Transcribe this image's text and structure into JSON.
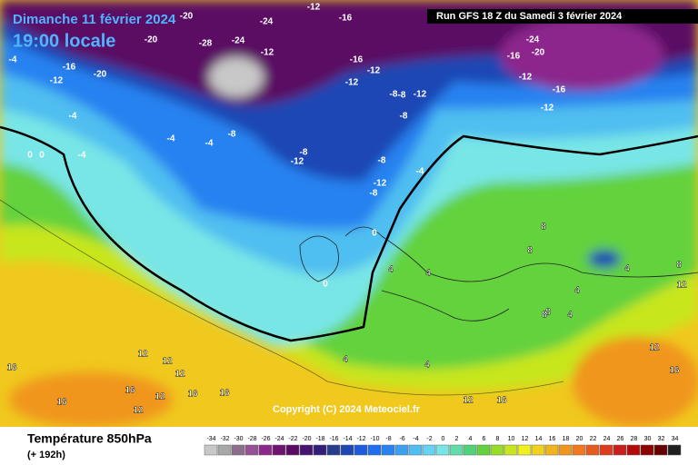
{
  "header": {
    "date": "Dimanche 11 février 2024",
    "time": "19:00 locale",
    "run": "Run GFS 18 Z du Samedi 3 février 2024"
  },
  "footer": {
    "parameter": "Température 850hPa",
    "lead": "(+ 192h)",
    "copyright": "Copyright (C) 2024 Meteociel.fr"
  },
  "legend": {
    "ticks": [
      -34,
      -32,
      -30,
      -28,
      -26,
      -24,
      -22,
      -20,
      -18,
      -16,
      -14,
      -12,
      -10,
      -8,
      -6,
      -4,
      -2,
      0,
      2,
      4,
      6,
      8,
      10,
      12,
      14,
      16,
      18,
      20,
      22,
      24,
      26,
      28,
      30,
      32,
      34
    ],
    "colors": [
      "#c8c8c8",
      "#a8a8a8",
      "#8c6e8c",
      "#965096",
      "#8c288c",
      "#6e146e",
      "#5a0a64",
      "#46146e",
      "#321e78",
      "#283c8c",
      "#1e46b4",
      "#1e5adc",
      "#1e6ef0",
      "#2882f0",
      "#3ca0f0",
      "#50bef0",
      "#64d2f0",
      "#78e6e6",
      "#64dcaa",
      "#50d278",
      "#64d23c",
      "#96dc28",
      "#c8e61e",
      "#f0f01e",
      "#f0d21e",
      "#f0b41e",
      "#f0961e",
      "#f0781e",
      "#e65a1e",
      "#dc3c1e",
      "#c81e1e",
      "#b40a0a",
      "#8c0000",
      "#640000",
      "#1e1e1e"
    ]
  },
  "isotherm_labels": [
    -12,
    -16,
    -20,
    -4,
    -12,
    -16,
    -20,
    -28,
    -24,
    -24,
    -12,
    -20,
    -16,
    -12,
    -12,
    -8,
    -8,
    -12,
    -8,
    -24,
    -20,
    -16,
    -12,
    -16,
    -12,
    -4,
    -4,
    -4,
    0,
    0,
    -4,
    -8,
    -12,
    -8,
    -8,
    -12,
    -8,
    -4,
    0,
    0,
    4,
    4,
    8,
    4,
    8,
    4,
    8,
    4,
    12,
    8,
    12,
    12,
    16,
    12,
    12,
    16,
    12,
    16,
    16,
    12,
    16,
    8,
    4,
    4,
    12,
    16,
    16
  ]
}
